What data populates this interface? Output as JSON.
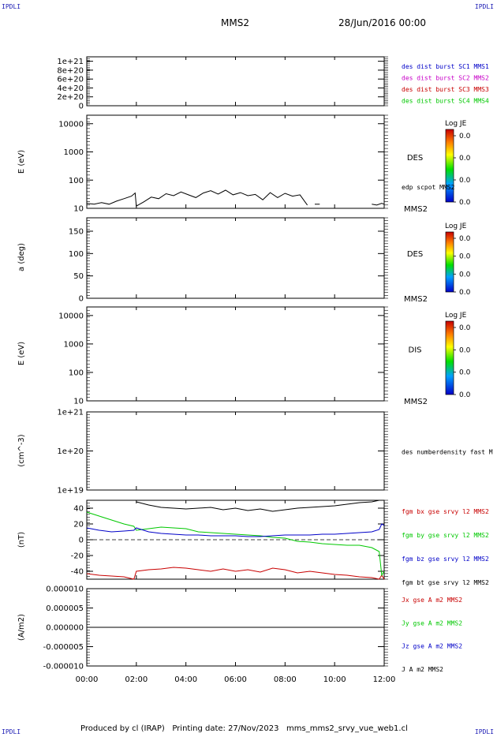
{
  "header": {
    "corner_top_left": "IPDLI",
    "corner_top_right": "IPDLI",
    "corner_bottom_left": "IPDLI",
    "corner_bottom_right": "IPDLI",
    "spacecraft": "MMS2",
    "date": "28/Jun/2016 00:00"
  },
  "footer": {
    "text": "Produced by cl (IRAP)   Printing date: 27/Nov/2023   mms_mms2_srvy_vue_web1.cl"
  },
  "colors": {
    "blue": "#0000c8",
    "magenta": "#c800c8",
    "red": "#c80000",
    "green": "#00c800",
    "black": "#000000"
  },
  "chart_data": [
    {
      "id": "p1",
      "type": "line",
      "y_ticks": [
        "1e+21",
        "8e+20",
        "6e+20",
        "4e+20",
        "2e+20",
        "0"
      ],
      "ylim": [
        0,
        1.1e+21
      ],
      "zero_line": "dashed",
      "x": [],
      "legend": [
        {
          "name": "des dist burst SC1 MMS1",
          "color": "#0000c8"
        },
        {
          "name": "des dist burst SC2 MMS2",
          "color": "#c800c8"
        },
        {
          "name": "des dist burst SC3 MMS3",
          "color": "#c80000"
        },
        {
          "name": "des dist burst SC4 MMS4",
          "color": "#00c800"
        }
      ]
    },
    {
      "id": "p2",
      "type": "line",
      "ylabel": "E (eV)",
      "y_scale": "log",
      "y_ticks": [
        "10000",
        "1000",
        "100",
        "10"
      ],
      "ylim": [
        10,
        20000
      ],
      "label": "DES",
      "spacecraft_label": "MMS2",
      "series_label": "edp scpot MMS2",
      "colorbar": {
        "title": "Log JE",
        "ticks": [
          "0.0",
          "0.0",
          "0.0",
          "0.0"
        ]
      },
      "series": [
        {
          "name": "edp scpot MMS2",
          "color": "#000000",
          "x": [
            0.0,
            0.3,
            0.6,
            0.9,
            1.2,
            1.5,
            1.8,
            1.95,
            2.0,
            2.3,
            2.6,
            2.9,
            3.2,
            3.5,
            3.8,
            4.1,
            4.4,
            4.7,
            5.0,
            5.3,
            5.6,
            5.9,
            6.2,
            6.5,
            6.8,
            7.1,
            7.4,
            7.7,
            8.0,
            8.3,
            8.6,
            8.9
          ],
          "y": [
            15,
            14,
            16,
            14,
            18,
            22,
            27,
            35,
            12,
            17,
            25,
            22,
            33,
            28,
            38,
            30,
            24,
            35,
            42,
            32,
            44,
            30,
            36,
            28,
            31,
            20,
            36,
            24,
            34,
            27,
            30,
            13
          ]
        },
        {
          "name": "",
          "color": "#000000",
          "x": [
            9.2,
            9.4
          ],
          "y": [
            14,
            14
          ]
        },
        {
          "name": "",
          "color": "#000000",
          "x": [
            11.5,
            11.7,
            11.9,
            12.0
          ],
          "y": [
            14,
            13,
            15,
            14
          ]
        }
      ]
    },
    {
      "id": "p3",
      "type": "heatmap",
      "ylabel": "a (deg)",
      "y_ticks": [
        "150",
        "100",
        "50",
        "0"
      ],
      "ylim": [
        0,
        180
      ],
      "label": "DES",
      "spacecraft_label": "MMS2",
      "colorbar": {
        "title": "Log JE",
        "ticks": [
          "0.0",
          "0.0",
          "0.0",
          "0.0"
        ]
      }
    },
    {
      "id": "p4",
      "type": "heatmap",
      "ylabel": "E (eV)",
      "y_scale": "log",
      "y_ticks": [
        "10000",
        "1000",
        "100",
        "10"
      ],
      "ylim": [
        10,
        20000
      ],
      "label": "DIS",
      "spacecraft_label": "MMS2",
      "colorbar": {
        "title": "Log JE",
        "ticks": [
          "0.0",
          "0.0",
          "0.0",
          "0.0"
        ]
      }
    },
    {
      "id": "p5",
      "type": "line",
      "ylabel": "(cm^-3)",
      "y_scale": "log",
      "y_ticks": [
        "1e+21",
        "1e+20",
        "1e+19"
      ],
      "ylim": [
        1e+19,
        1e+21
      ],
      "legend": [
        {
          "name": "des numberdensity fast M",
          "color": "#000000"
        }
      ]
    },
    {
      "id": "p6",
      "type": "line",
      "ylabel": "(nT)",
      "y_ticks": [
        "40",
        "20",
        "0",
        "-20",
        "-40"
      ],
      "ylim": [
        -50,
        50
      ],
      "zero_line": "dashed",
      "x": [
        0,
        0.5,
        1.0,
        1.5,
        1.9,
        2.0,
        2.5,
        3.0,
        3.5,
        4.0,
        4.5,
        5.0,
        5.5,
        6.0,
        6.5,
        7.0,
        7.5,
        8.0,
        8.5,
        9.0,
        9.5,
        10.0,
        10.5,
        11.0,
        11.5,
        11.8,
        11.9,
        12.0
      ],
      "series": [
        {
          "name": "fgm bx gse srvy l2 MMS2",
          "color": "#c80000",
          "values": [
            -43,
            -45,
            -46,
            -47,
            -50,
            -40,
            -38,
            -37,
            -35,
            -36,
            -38,
            -40,
            -37,
            -40,
            -38,
            -41,
            -36,
            -38,
            -42,
            -40,
            -42,
            -44,
            -45,
            -47,
            -48,
            -50,
            -45,
            -50
          ]
        },
        {
          "name": "fgm by gse srvy l2 MMS2",
          "color": "#00c800",
          "values": [
            35,
            30,
            25,
            20,
            17,
            12,
            14,
            16,
            15,
            14,
            10,
            9,
            8,
            7,
            6,
            5,
            3,
            2,
            -2,
            -3,
            -5,
            -6,
            -7,
            -7,
            -10,
            -15,
            -45,
            -40
          ]
        },
        {
          "name": "fgm bz gse srvy l2 MMS2",
          "color": "#0000c8",
          "values": [
            15,
            12,
            10,
            11,
            12,
            15,
            10,
            8,
            7,
            6,
            6,
            5,
            5,
            5,
            4,
            4,
            5,
            6,
            6,
            6,
            7,
            7,
            8,
            9,
            10,
            13,
            20,
            18
          ]
        },
        {
          "name": "fgm bt gse srvy l2 MMS2",
          "color": "#000000",
          "values": [
            null,
            null,
            null,
            null,
            null,
            48,
            44,
            41,
            40,
            39,
            40,
            41,
            38,
            40,
            37,
            39,
            36,
            38,
            40,
            41,
            42,
            43,
            45,
            47,
            48,
            50,
            52,
            50
          ]
        }
      ]
    },
    {
      "id": "p7",
      "type": "line",
      "ylabel": "(A/m2)",
      "y_ticks": [
        "0.000010",
        "0.000005",
        "0.000000",
        "-0.000005",
        "-0.000010"
      ],
      "ylim": [
        -1e-05,
        1e-05
      ],
      "x": [
        0,
        12
      ],
      "series": [
        {
          "name": "Jx gse A m2 MMS2",
          "color": "#c80000",
          "values": [
            0,
            0
          ]
        },
        {
          "name": "Jy gse A m2 MMS2",
          "color": "#00c800",
          "values": [
            0,
            0
          ]
        },
        {
          "name": "Jz gse A m2 MMS2",
          "color": "#0000c8",
          "values": [
            0,
            0
          ]
        },
        {
          "name": "J A m2 MMS2",
          "color": "#000000",
          "values": [
            0,
            0
          ]
        }
      ]
    }
  ],
  "x_axis": {
    "ticks": [
      "00:00",
      "02:00",
      "04:00",
      "06:00",
      "08:00",
      "10:00",
      "12:00"
    ],
    "xlim_hours": [
      0,
      12
    ]
  }
}
